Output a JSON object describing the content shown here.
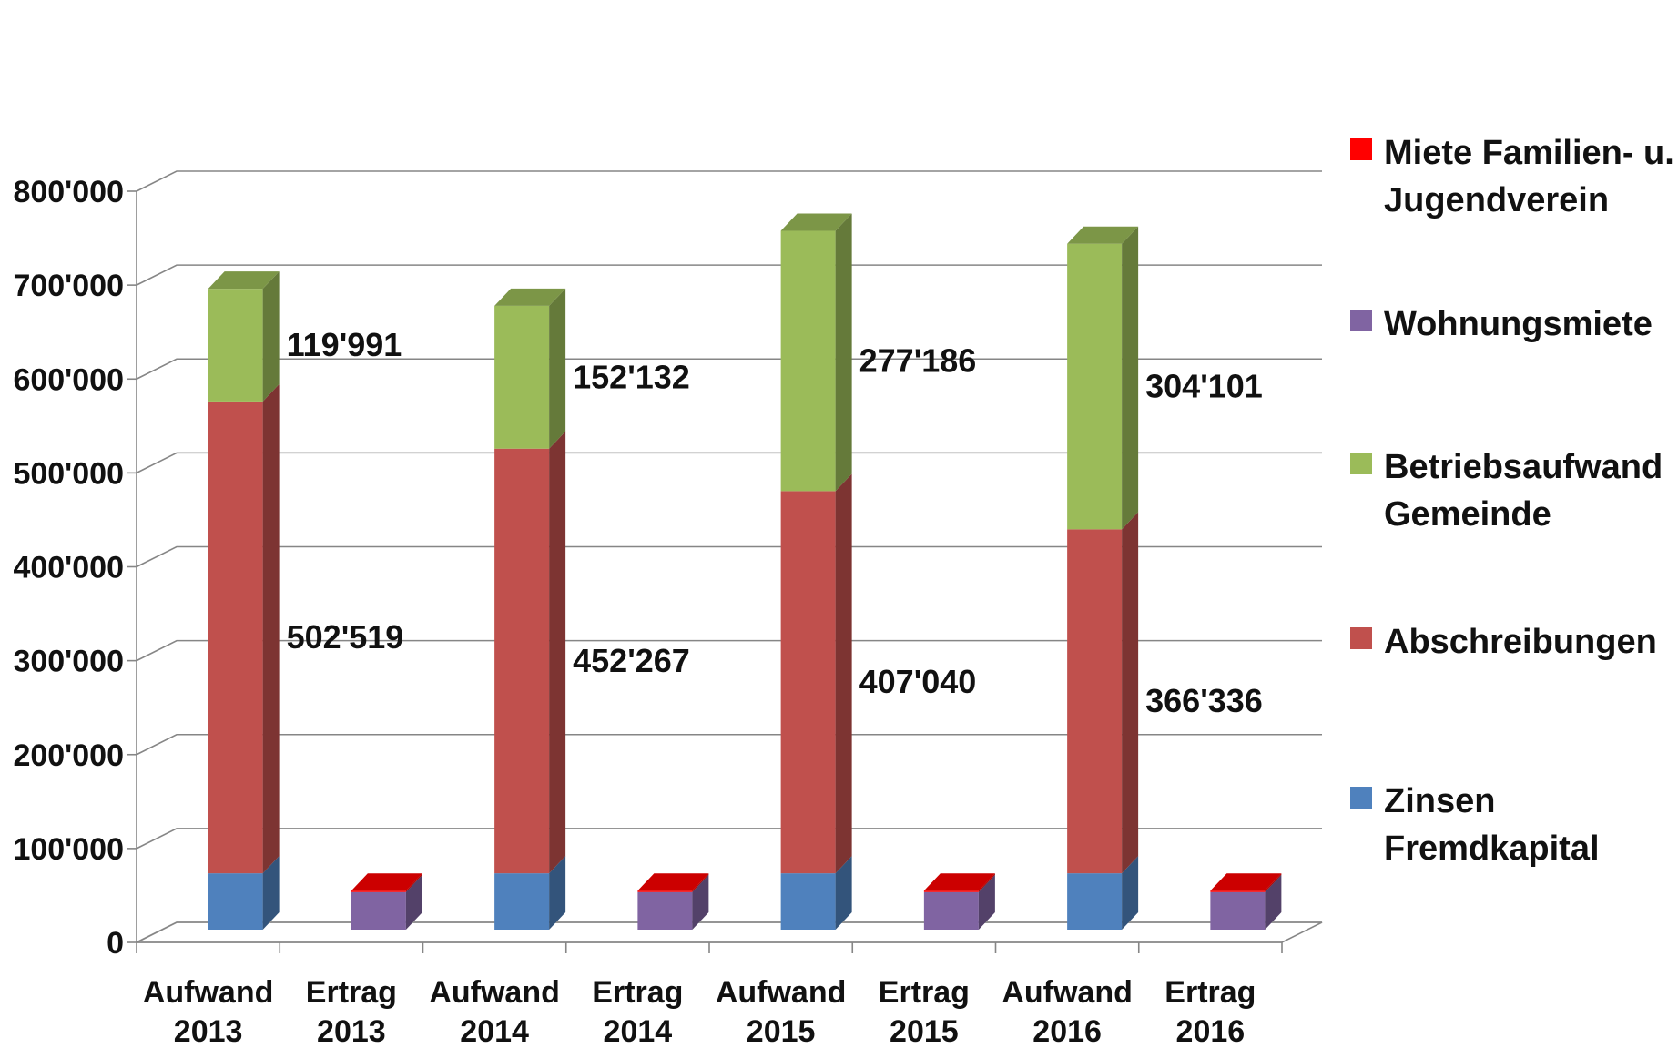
{
  "chart_data": {
    "type": "bar",
    "stacked": true,
    "three_d": true,
    "title": "",
    "xlabel": "",
    "ylabel": "",
    "ylim": [
      0,
      800000
    ],
    "yticks": [
      0,
      100000,
      200000,
      300000,
      400000,
      500000,
      600000,
      700000,
      800000
    ],
    "ytick_labels": [
      "0",
      "100'000",
      "200'000",
      "300'000",
      "400'000",
      "500'000",
      "600'000",
      "700'000",
      "800'000"
    ],
    "grid": true,
    "legend_position": "right",
    "categories": [
      {
        "line1": "Aufwand",
        "line2": "2013"
      },
      {
        "line1": "Ertrag",
        "line2": "2013"
      },
      {
        "line1": "Aufwand",
        "line2": "2014"
      },
      {
        "line1": "Ertrag",
        "line2": "2014"
      },
      {
        "line1": "Aufwand",
        "line2": "2015"
      },
      {
        "line1": "Ertrag",
        "line2": "2015"
      },
      {
        "line1": "Aufwand",
        "line2": "2016"
      },
      {
        "line1": "Ertrag",
        "line2": "2016"
      }
    ],
    "series": [
      {
        "name": "Zinsen Fremdkapital",
        "legend_lines": [
          "Zinsen",
          "Fremdkapital"
        ],
        "color": "#4F81BD",
        "values": [
          60000,
          0,
          60000,
          0,
          60000,
          0,
          60000,
          0
        ]
      },
      {
        "name": "Abschreibungen",
        "legend_lines": [
          "Abschreibungen"
        ],
        "color": "#C0504D",
        "values": [
          502519,
          0,
          452267,
          0,
          407040,
          0,
          366336,
          0
        ]
      },
      {
        "name": "Betriebsaufwand Gemeinde",
        "legend_lines": [
          "Betriebsaufwand",
          "Gemeinde"
        ],
        "color": "#9BBB59",
        "values": [
          119991,
          0,
          152132,
          0,
          277186,
          0,
          304101,
          0
        ]
      },
      {
        "name": "Wohnungsmiete",
        "legend_lines": [
          "Wohnungsmiete"
        ],
        "color": "#8064A2",
        "values": [
          0,
          40000,
          0,
          40000,
          0,
          40000,
          0,
          40000
        ]
      },
      {
        "name": "Miete Familien- u. Jugendverein",
        "legend_lines": [
          "Miete Familien- u.",
          "Jugendverein"
        ],
        "color": "#FF0000",
        "values": [
          0,
          1500,
          0,
          1500,
          0,
          1500,
          0,
          1500
        ]
      }
    ],
    "data_labels": [
      {
        "category_index": 0,
        "series": "Betriebsaufwand Gemeinde",
        "text": "119'991"
      },
      {
        "category_index": 0,
        "series": "Abschreibungen",
        "text": "502'519"
      },
      {
        "category_index": 2,
        "series": "Betriebsaufwand Gemeinde",
        "text": "152'132"
      },
      {
        "category_index": 2,
        "series": "Abschreibungen",
        "text": "452'267"
      },
      {
        "category_index": 4,
        "series": "Betriebsaufwand Gemeinde",
        "text": "277'186"
      },
      {
        "category_index": 4,
        "series": "Abschreibungen",
        "text": "407'040"
      },
      {
        "category_index": 6,
        "series": "Betriebsaufwand Gemeinde",
        "text": "304'101"
      },
      {
        "category_index": 6,
        "series": "Abschreibungen",
        "text": "366'336"
      }
    ],
    "legend_order": [
      "Miete Familien- u. Jugendverein",
      "Wohnungsmiete",
      "Betriebsaufwand Gemeinde",
      "Abschreibungen",
      "Zinsen Fremdkapital"
    ]
  }
}
